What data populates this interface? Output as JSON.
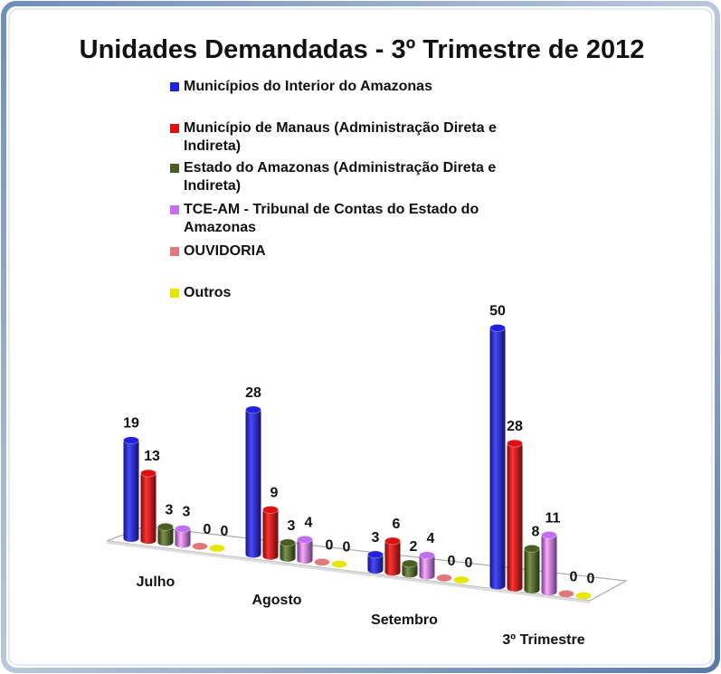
{
  "chart_data": {
    "type": "bar",
    "title": "Unidades Demandadas - 3º Trimestre de 2012",
    "categories": [
      "Julho",
      "Agosto",
      "Setembro",
      "3º Trimestre"
    ],
    "series": [
      {
        "name": "Municípios do Interior do Amazonas",
        "color": "#2222dd",
        "values": [
          19,
          28,
          3,
          50
        ]
      },
      {
        "name": "Município de Manaus (Administração Direta e Indireta)",
        "color": "#dd1111",
        "values": [
          13,
          9,
          6,
          28
        ]
      },
      {
        "name": "Estado do Amazonas (Administração Direta e Indireta)",
        "color": "#4a5e22",
        "values": [
          3,
          3,
          2,
          8
        ]
      },
      {
        "name": "TCE-AM - Tribunal de Contas do Estado do Amazonas",
        "color": "#c070f0",
        "values": [
          3,
          4,
          4,
          11
        ]
      },
      {
        "name": "OUVIDORIA",
        "color": "#e07a7a",
        "values": [
          0,
          0,
          0,
          0
        ]
      },
      {
        "name": "Outros",
        "color": "#e6e600",
        "values": [
          0,
          0,
          0,
          0
        ]
      }
    ]
  }
}
